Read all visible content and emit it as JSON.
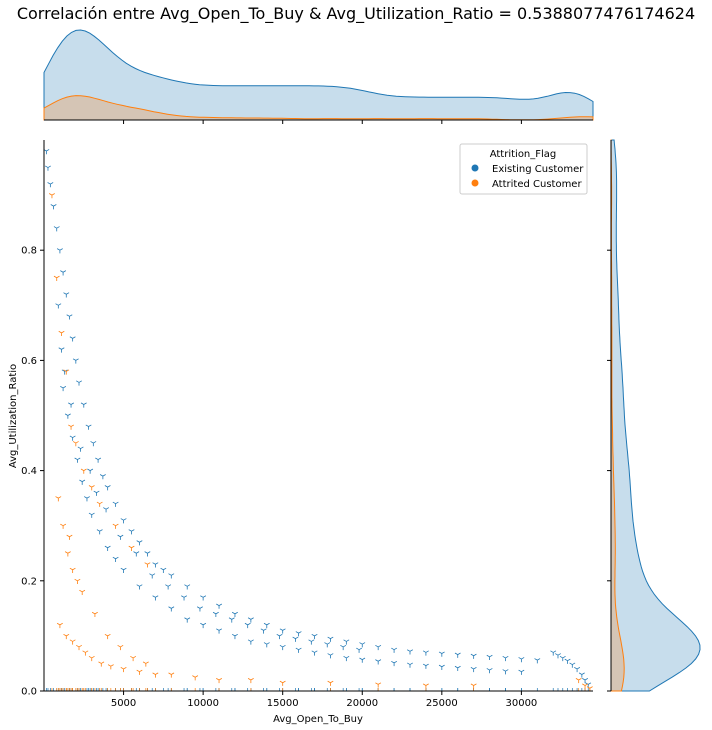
{
  "chart_data": {
    "type": "scatter",
    "title": "Correlación entre Avg_Open_To_Buy & Avg_Utilization_Ratio = 0.5388077476174624",
    "xlabel": "Avg_Open_To_Buy",
    "ylabel": "Avg_Utilization_Ratio",
    "xlim": [
      0,
      34500
    ],
    "ylim": [
      0,
      1.0
    ],
    "xticks": [
      5000,
      10000,
      15000,
      20000,
      25000,
      30000
    ],
    "yticks": [
      0.0,
      0.2,
      0.4,
      0.6,
      0.8
    ],
    "grid": false,
    "legend": {
      "title": "Attrition_Flag",
      "placement": "top-right",
      "entries": [
        {
          "name": "Existing Customer",
          "color": "#1f77b4"
        },
        {
          "name": "Attrited Customer",
          "color": "#ff7f0e"
        }
      ]
    },
    "series": [
      {
        "name": "Existing Customer",
        "color": "#1f77b4",
        "marker": "tri",
        "points": [
          [
            150,
            0.98
          ],
          [
            250,
            0.95
          ],
          [
            400,
            0.92
          ],
          [
            600,
            0.88
          ],
          [
            800,
            0.84
          ],
          [
            1000,
            0.8
          ],
          [
            1200,
            0.76
          ],
          [
            1400,
            0.72
          ],
          [
            1600,
            0.68
          ],
          [
            1800,
            0.64
          ],
          [
            2000,
            0.6
          ],
          [
            2200,
            0.56
          ],
          [
            2500,
            0.52
          ],
          [
            2800,
            0.48
          ],
          [
            3100,
            0.45
          ],
          [
            3400,
            0.42
          ],
          [
            3700,
            0.39
          ],
          [
            4000,
            0.37
          ],
          [
            4500,
            0.34
          ],
          [
            5000,
            0.31
          ],
          [
            5500,
            0.29
          ],
          [
            6000,
            0.27
          ],
          [
            6500,
            0.25
          ],
          [
            7000,
            0.23
          ],
          [
            7500,
            0.22
          ],
          [
            8000,
            0.21
          ],
          [
            9000,
            0.19
          ],
          [
            10000,
            0.17
          ],
          [
            11000,
            0.155
          ],
          [
            12000,
            0.14
          ],
          [
            13000,
            0.13
          ],
          [
            14000,
            0.12
          ],
          [
            15000,
            0.11
          ],
          [
            16000,
            0.105
          ],
          [
            17000,
            0.1
          ],
          [
            18000,
            0.095
          ],
          [
            19000,
            0.09
          ],
          [
            20000,
            0.085
          ],
          [
            21000,
            0.08
          ],
          [
            22000,
            0.075
          ],
          [
            23000,
            0.072
          ],
          [
            24000,
            0.07
          ],
          [
            25000,
            0.068
          ],
          [
            26000,
            0.066
          ],
          [
            27000,
            0.064
          ],
          [
            28000,
            0.062
          ],
          [
            29000,
            0.06
          ],
          [
            30000,
            0.058
          ],
          [
            31000,
            0.056
          ],
          [
            1200,
            0.55
          ],
          [
            1500,
            0.5
          ],
          [
            1800,
            0.46
          ],
          [
            2100,
            0.42
          ],
          [
            2400,
            0.38
          ],
          [
            2700,
            0.35
          ],
          [
            3000,
            0.32
          ],
          [
            3500,
            0.29
          ],
          [
            4000,
            0.26
          ],
          [
            4500,
            0.24
          ],
          [
            5000,
            0.22
          ],
          [
            6000,
            0.19
          ],
          [
            7000,
            0.17
          ],
          [
            8000,
            0.15
          ],
          [
            9000,
            0.13
          ],
          [
            10000,
            0.12
          ],
          [
            11000,
            0.11
          ],
          [
            12000,
            0.1
          ],
          [
            13000,
            0.09
          ],
          [
            14000,
            0.085
          ],
          [
            15000,
            0.08
          ],
          [
            16000,
            0.075
          ],
          [
            17000,
            0.07
          ],
          [
            18000,
            0.065
          ],
          [
            19000,
            0.06
          ],
          [
            20000,
            0.057
          ],
          [
            21000,
            0.054
          ],
          [
            22000,
            0.051
          ],
          [
            23000,
            0.048
          ],
          [
            24000,
            0.046
          ],
          [
            25000,
            0.044
          ],
          [
            26000,
            0.042
          ],
          [
            27000,
            0.04
          ],
          [
            28000,
            0.038
          ],
          [
            29000,
            0.036
          ],
          [
            30000,
            0.035
          ],
          [
            900,
            0.7
          ],
          [
            1100,
            0.62
          ],
          [
            1300,
            0.58
          ],
          [
            1700,
            0.52
          ],
          [
            2300,
            0.44
          ],
          [
            2900,
            0.4
          ],
          [
            3300,
            0.36
          ],
          [
            3900,
            0.33
          ],
          [
            4800,
            0.28
          ],
          [
            5800,
            0.25
          ],
          [
            6800,
            0.21
          ],
          [
            7800,
            0.19
          ],
          [
            8800,
            0.17
          ],
          [
            9800,
            0.15
          ],
          [
            10800,
            0.14
          ],
          [
            11800,
            0.13
          ],
          [
            12800,
            0.12
          ],
          [
            13800,
            0.11
          ],
          [
            14800,
            0.1
          ],
          [
            15800,
            0.095
          ],
          [
            16800,
            0.09
          ],
          [
            17800,
            0.085
          ],
          [
            18800,
            0.08
          ],
          [
            19800,
            0.075
          ],
          [
            32000,
            0.07
          ],
          [
            32300,
            0.065
          ],
          [
            32600,
            0.06
          ],
          [
            32900,
            0.055
          ],
          [
            33200,
            0.048
          ],
          [
            33500,
            0.04
          ],
          [
            33800,
            0.03
          ],
          [
            34000,
            0.02
          ],
          [
            34200,
            0.012
          ]
        ]
      },
      {
        "name": "Attrited Customer",
        "color": "#ff7f0e",
        "marker": "tri",
        "points": [
          [
            500,
            0.9
          ],
          [
            800,
            0.75
          ],
          [
            1100,
            0.65
          ],
          [
            1400,
            0.58
          ],
          [
            1700,
            0.48
          ],
          [
            2000,
            0.45
          ],
          [
            2500,
            0.4
          ],
          [
            3000,
            0.37
          ],
          [
            3500,
            0.34
          ],
          [
            4500,
            0.3
          ],
          [
            5500,
            0.26
          ],
          [
            6500,
            0.23
          ],
          [
            900,
            0.35
          ],
          [
            1200,
            0.3
          ],
          [
            1500,
            0.25
          ],
          [
            1800,
            0.22
          ],
          [
            2100,
            0.2
          ],
          [
            1000,
            0.12
          ],
          [
            1400,
            0.1
          ],
          [
            1800,
            0.09
          ],
          [
            2200,
            0.08
          ],
          [
            2600,
            0.07
          ],
          [
            3000,
            0.06
          ],
          [
            3600,
            0.05
          ],
          [
            4200,
            0.045
          ],
          [
            5000,
            0.04
          ],
          [
            6000,
            0.035
          ],
          [
            7000,
            0.03
          ],
          [
            8000,
            0.03
          ],
          [
            9500,
            0.025
          ],
          [
            11000,
            0.02
          ],
          [
            13000,
            0.02
          ],
          [
            15000,
            0.015
          ],
          [
            18000,
            0.015
          ],
          [
            21000,
            0.012
          ],
          [
            24000,
            0.01
          ],
          [
            27000,
            0.01
          ],
          [
            1600,
            0.28
          ],
          [
            2400,
            0.18
          ],
          [
            3200,
            0.14
          ],
          [
            4000,
            0.1
          ],
          [
            4800,
            0.08
          ],
          [
            5600,
            0.06
          ],
          [
            6400,
            0.05
          ],
          [
            33600,
            0.02
          ],
          [
            34000,
            0.01
          ],
          [
            34300,
            0.005
          ]
        ]
      }
    ]
  }
}
